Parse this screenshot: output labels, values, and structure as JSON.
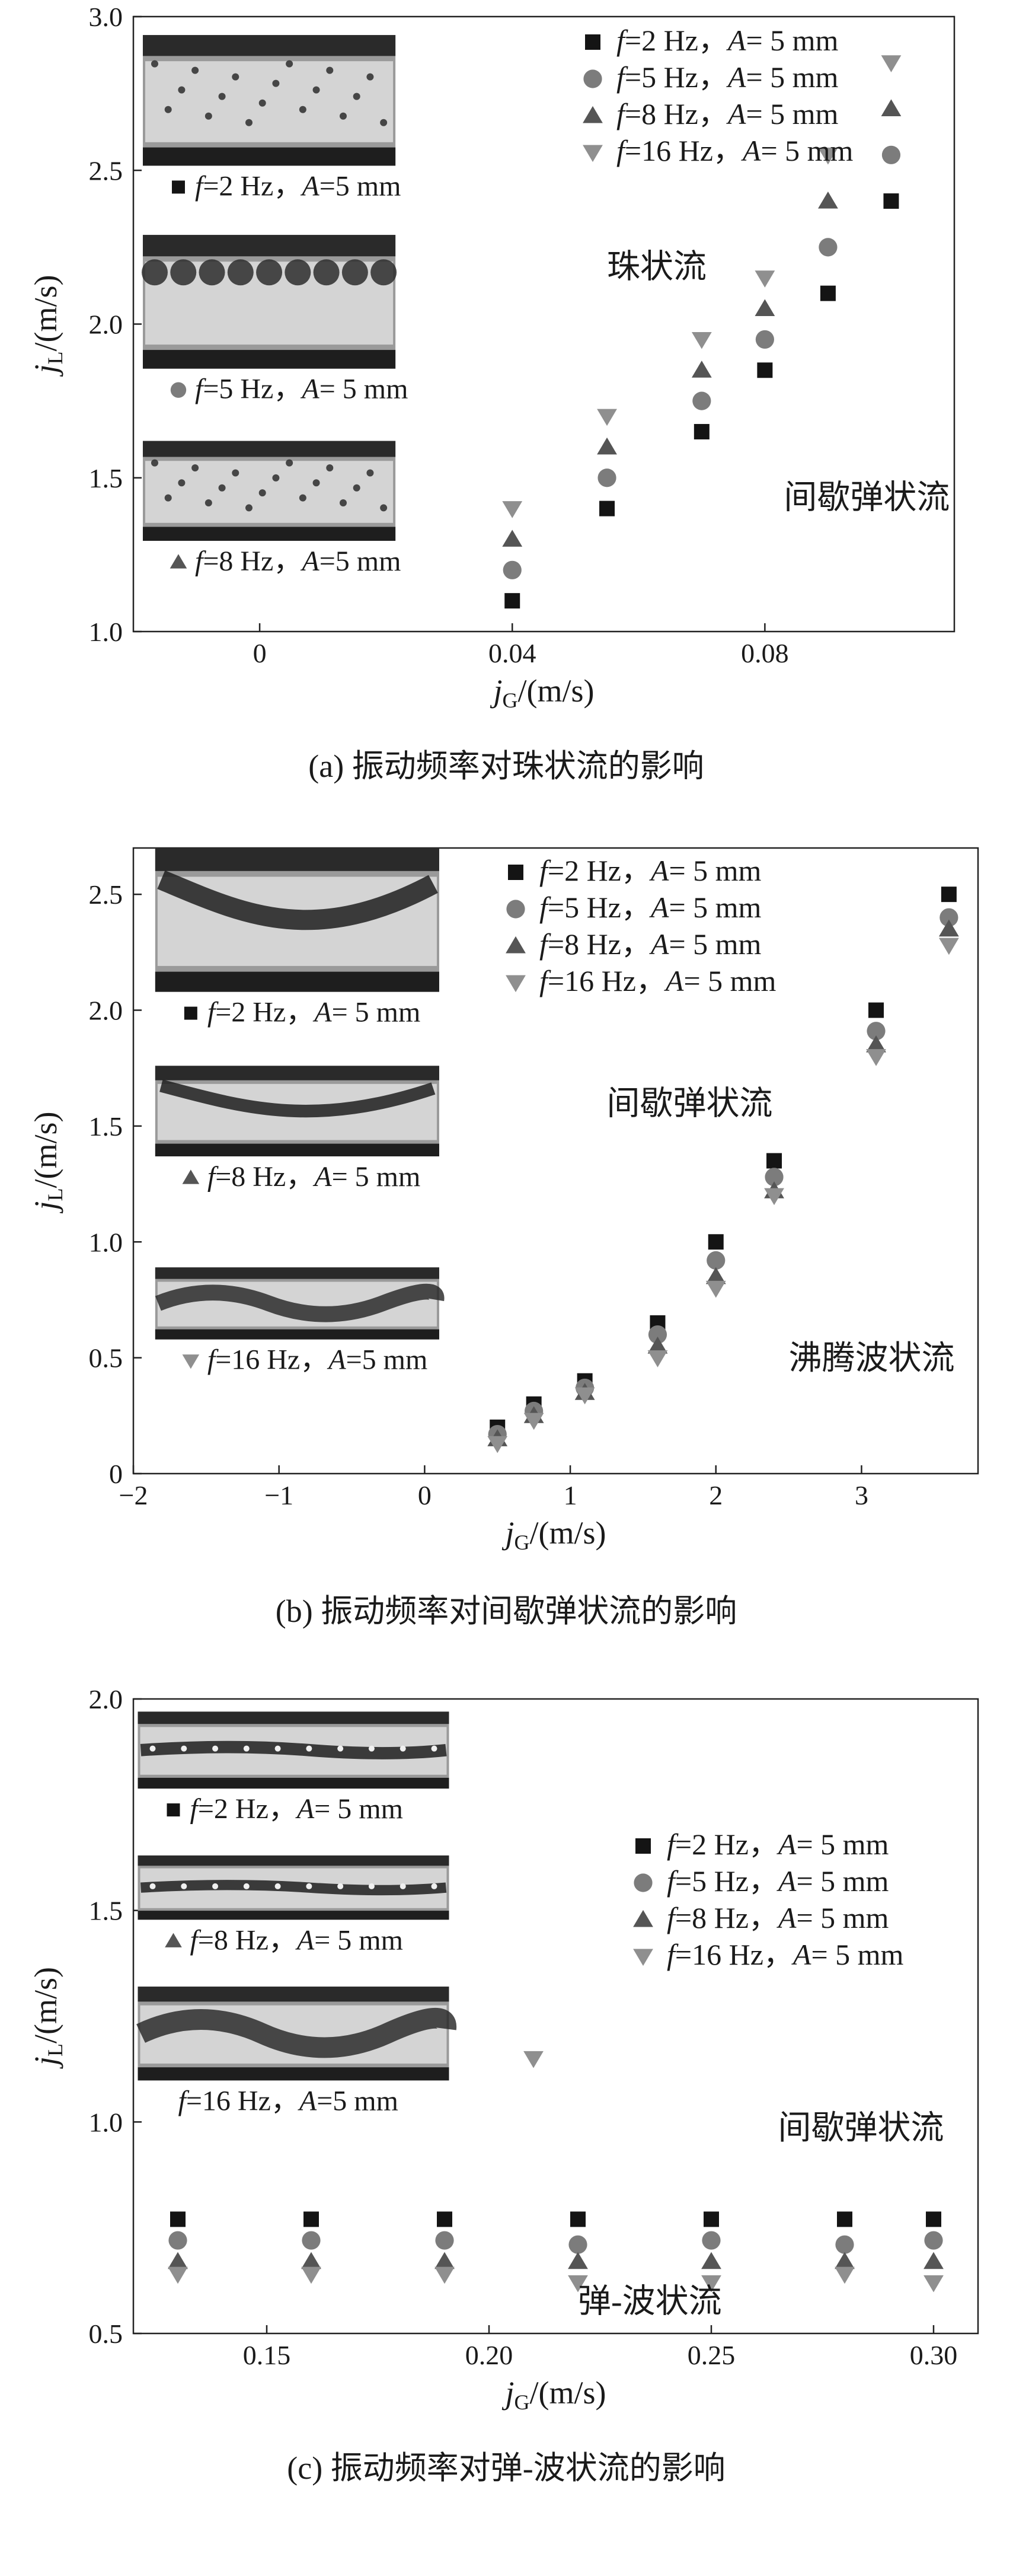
{
  "colors": {
    "f2": "#141414",
    "f5": "#7c7c7c",
    "f8": "#555555",
    "f16": "#8f8f8f"
  },
  "chart_data": [
    {
      "id": "a",
      "type": "scatter",
      "caption": "(a) 振动频率对珠状流的影响",
      "xlabel_main": "j",
      "xlabel_sub": "G",
      "xlabel_unit": "/(m/s)",
      "ylabel_main": "j",
      "ylabel_sub": "L",
      "ylabel_unit": "/(m/s)",
      "xlim": [
        -0.02,
        0.11
      ],
      "ylim": [
        1.0,
        3.0
      ],
      "xticks": [
        0,
        0.04,
        0.08
      ],
      "xtick_labels": [
        "0",
        "0.04",
        "0.08"
      ],
      "yticks": [
        1.0,
        1.5,
        2.0,
        2.5,
        3.0
      ],
      "ytick_labels": [
        "1.0",
        "1.5",
        "2.0",
        "2.5",
        "3.0"
      ],
      "legend": {
        "f": "f",
        "hz": "Hz，",
        "a": "A",
        "mm": "mm"
      },
      "series": [
        {
          "name": "f=2 Hz，A= 5 mm",
          "marker": "square",
          "f_val": "=2",
          "a_val": "= 5",
          "x": [
            0.04,
            0.055,
            0.07,
            0.08,
            0.09,
            0.1
          ],
          "y": [
            1.1,
            1.4,
            1.65,
            1.85,
            2.1,
            2.4
          ]
        },
        {
          "name": "f=5 Hz，A= 5 mm",
          "marker": "circle",
          "f_val": "=5",
          "a_val": "= 5",
          "x": [
            0.04,
            0.055,
            0.07,
            0.08,
            0.09,
            0.1
          ],
          "y": [
            1.2,
            1.5,
            1.75,
            1.95,
            2.25,
            2.55
          ]
        },
        {
          "name": "f=8 Hz，A= 5 mm",
          "marker": "triangle-up",
          "f_val": "=8",
          "a_val": "= 5",
          "x": [
            0.04,
            0.055,
            0.07,
            0.08,
            0.09,
            0.1
          ],
          "y": [
            1.3,
            1.6,
            1.85,
            2.05,
            2.4,
            2.7
          ]
        },
        {
          "name": "f=16 Hz，A= 5 mm",
          "marker": "triangle-down",
          "f_val": "=16",
          "a_val": "= 5",
          "x": [
            0.04,
            0.055,
            0.07,
            0.08,
            0.09,
            0.1
          ],
          "y": [
            1.4,
            1.7,
            1.95,
            2.15,
            2.55,
            2.85
          ]
        }
      ],
      "annotations": [
        {
          "text": "珠状流",
          "x": 0.055,
          "y": 2.15
        },
        {
          "text": "间歇弹状流",
          "x": 0.083,
          "y": 1.4
        }
      ],
      "insets": [
        {
          "marker": "square",
          "f_val": "=2",
          "a_val": "=5",
          "style": "tight",
          "xr": [
            -0.0185,
            0.0215
          ],
          "yr": [
            2.38,
            2.94
          ]
        },
        {
          "marker": "circle",
          "f_val": "=5",
          "a_val": "= 5",
          "style": "spaced",
          "xr": [
            -0.0185,
            0.0215
          ],
          "yr": [
            1.72,
            2.29
          ]
        },
        {
          "marker": "triangle-up",
          "f_val": "=8",
          "a_val": "=5",
          "style": "tight",
          "xr": [
            -0.0185,
            0.0215
          ],
          "yr": [
            1.16,
            1.62
          ]
        }
      ]
    },
    {
      "id": "b",
      "type": "scatter",
      "caption": "(b) 振动频率对间歇弹状流的影响",
      "xlabel_main": "j",
      "xlabel_sub": "G",
      "xlabel_unit": "/(m/s)",
      "ylabel_main": "j",
      "ylabel_sub": "L",
      "ylabel_unit": "/(m/s)",
      "xlim": [
        -2,
        3.8
      ],
      "ylim": [
        0,
        2.7
      ],
      "xticks": [
        -2,
        -1,
        0,
        1,
        2,
        3
      ],
      "xtick_labels": [
        "−2",
        "−1",
        "0",
        "1",
        "2",
        "3"
      ],
      "yticks": [
        0,
        0.5,
        1.0,
        1.5,
        2.0,
        2.5
      ],
      "ytick_labels": [
        "0",
        "0.5",
        "1.0",
        "1.5",
        "2.0",
        "2.5"
      ],
      "legend": {
        "f": "f",
        "hz": "Hz，",
        "a": "A",
        "mm": "mm"
      },
      "series": [
        {
          "name": "f=2 Hz，A= 5 mm",
          "marker": "square",
          "f_val": "=2",
          "a_val": "= 5",
          "x": [
            0.5,
            0.75,
            1.1,
            1.6,
            2.0,
            2.4,
            3.1,
            3.6
          ],
          "y": [
            0.2,
            0.3,
            0.4,
            0.65,
            1.0,
            1.35,
            2.0,
            2.5
          ]
        },
        {
          "name": "f=5 Hz，A= 5 mm",
          "marker": "circle",
          "f_val": "=5",
          "a_val": "= 5",
          "x": [
            0.5,
            0.75,
            1.1,
            1.6,
            2.0,
            2.4,
            3.1,
            3.6
          ],
          "y": [
            0.17,
            0.27,
            0.37,
            0.6,
            0.92,
            1.28,
            1.91,
            2.4
          ]
        },
        {
          "name": "f=8 Hz，A= 5 mm",
          "marker": "triangle-up",
          "f_val": "=8",
          "a_val": "= 5",
          "x": [
            0.5,
            0.75,
            1.1,
            1.6,
            2.0,
            2.4,
            3.1,
            3.6
          ],
          "y": [
            0.15,
            0.25,
            0.35,
            0.55,
            0.85,
            1.22,
            1.85,
            2.35
          ]
        },
        {
          "name": "f=16 Hz，A= 5 mm",
          "marker": "triangle-down",
          "f_val": "=16",
          "a_val": "= 5",
          "x": [
            0.5,
            0.75,
            1.1,
            1.6,
            2.0,
            2.4,
            3.1,
            3.6
          ],
          "y": [
            0.13,
            0.23,
            0.34,
            0.5,
            0.8,
            1.2,
            1.8,
            2.28
          ]
        }
      ],
      "annotations": [
        {
          "text": "间歇弹状流",
          "x": 1.25,
          "y": 1.55
        },
        {
          "text": "沸腾波状流",
          "x": 2.5,
          "y": 0.45
        }
      ],
      "insets": [
        {
          "marker": "square",
          "f_val": "=2",
          "a_val": "= 5",
          "style": "slug",
          "xr": [
            -1.85,
            0.1
          ],
          "yr": [
            1.9,
            2.7
          ]
        },
        {
          "marker": "triangle-up",
          "f_val": "=8",
          "a_val": "= 5",
          "style": "slug",
          "xr": [
            -1.85,
            0.1
          ],
          "yr": [
            1.19,
            1.76
          ]
        },
        {
          "marker": "triangle-down",
          "f_val": "=16",
          "a_val": "=5",
          "style": "wavy",
          "xr": [
            -1.85,
            0.1
          ],
          "yr": [
            0.4,
            0.89
          ]
        }
      ]
    },
    {
      "id": "c",
      "type": "scatter",
      "caption": "(c) 振动频率对弹-波状流的影响",
      "xlabel_main": "j",
      "xlabel_sub": "G",
      "xlabel_unit": "/(m/s)",
      "ylabel_main": "j",
      "ylabel_sub": "L",
      "ylabel_unit": "/(m/s)",
      "xlim": [
        0.12,
        0.31
      ],
      "ylim": [
        0.5,
        2.0
      ],
      "xticks": [
        0.15,
        0.2,
        0.25,
        0.3
      ],
      "xtick_labels": [
        "0.15",
        "0.20",
        "0.25",
        "0.30"
      ],
      "yticks": [
        0.5,
        1.0,
        1.5,
        2.0
      ],
      "ytick_labels": [
        "0.5",
        "1.0",
        "1.5",
        "2.0"
      ],
      "legend": {
        "f": "f",
        "hz": "Hz，",
        "a": "A",
        "mm": "mm"
      },
      "series": [
        {
          "name": "f=2 Hz，A= 5 mm",
          "marker": "square",
          "f_val": "=2",
          "a_val": "= 5",
          "x": [
            0.13,
            0.16,
            0.19,
            0.22,
            0.25,
            0.28,
            0.3
          ],
          "y": [
            0.77,
            0.77,
            0.77,
            0.77,
            0.77,
            0.77,
            0.77
          ]
        },
        {
          "name": "f=5 Hz，A= 5 mm",
          "marker": "circle",
          "f_val": "=5",
          "a_val": "= 5",
          "x": [
            0.13,
            0.16,
            0.19,
            0.22,
            0.25,
            0.28,
            0.3
          ],
          "y": [
            0.72,
            0.72,
            0.72,
            0.71,
            0.72,
            0.71,
            0.72
          ]
        },
        {
          "name": "f=8 Hz，A= 5 mm",
          "marker": "triangle-up",
          "f_val": "=8",
          "a_val": "= 5",
          "x": [
            0.13,
            0.16,
            0.19,
            0.22,
            0.25,
            0.28,
            0.3
          ],
          "y": [
            0.67,
            0.67,
            0.67,
            0.67,
            0.67,
            0.67,
            0.67
          ]
        },
        {
          "name": "f=16 Hz，A= 5 mm",
          "marker": "triangle-down",
          "f_val": "=16",
          "a_val": "= 5",
          "x": [
            0.13,
            0.16,
            0.19,
            0.21,
            0.22,
            0.25,
            0.28,
            0.3
          ],
          "y": [
            0.64,
            0.64,
            0.64,
            1.15,
            0.62,
            0.62,
            0.64,
            0.62
          ]
        }
      ],
      "annotations": [
        {
          "text": "间歇弹状流",
          "x": 0.265,
          "y": 0.96
        },
        {
          "text": "弹-波状流",
          "x": 0.22,
          "y": 0.55
        }
      ],
      "insets": [
        {
          "marker": "square",
          "f_val": "=2",
          "a_val": "= 5",
          "style": "thin",
          "xr": [
            0.121,
            0.191
          ],
          "yr": [
            1.69,
            1.97
          ]
        },
        {
          "marker": "triangle-up",
          "f_val": "=8",
          "a_val": "= 5",
          "style": "thin",
          "xr": [
            0.121,
            0.191
          ],
          "yr": [
            1.38,
            1.63
          ]
        },
        {
          "marker": "none",
          "f_val": "=16",
          "a_val": "=5",
          "style": "wavy",
          "xr": [
            0.121,
            0.191
          ],
          "yr": [
            1.0,
            1.32
          ]
        }
      ]
    }
  ]
}
